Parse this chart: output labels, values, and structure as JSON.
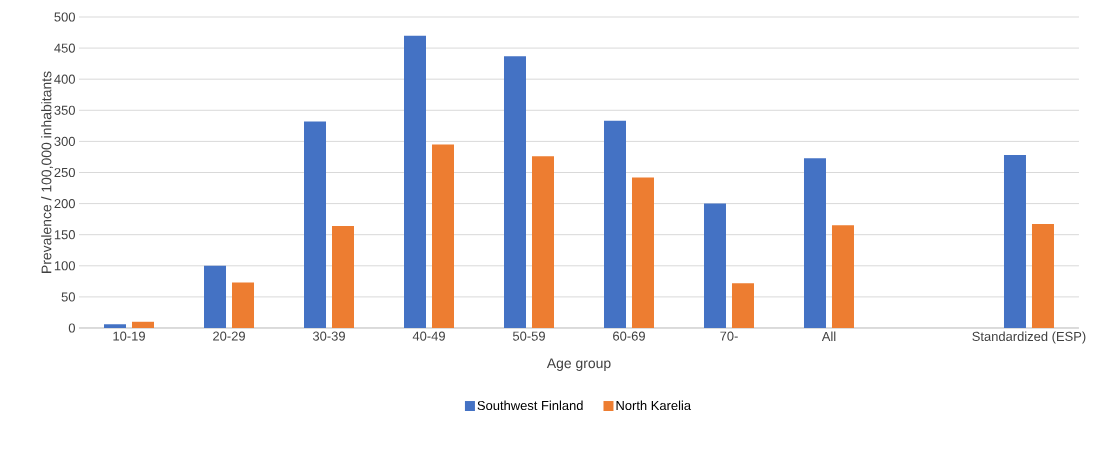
{
  "chart_data": {
    "type": "bar",
    "xlabel": "Age group",
    "ylabel": "Prevalence / 100,000 inhabitants",
    "categories": [
      "10-19",
      "20-29",
      "30-39",
      "40-49",
      "50-59",
      "60-69",
      "70-",
      "All",
      null,
      "Standardized (ESP)"
    ],
    "series": [
      {
        "name": "Southwest Finland",
        "color": "#4472c4",
        "values": [
          6,
          100,
          332,
          470,
          437,
          333,
          200,
          273,
          null,
          278
        ]
      },
      {
        "name": "North Karelia",
        "color": "#ed7d31",
        "values": [
          10,
          73,
          164,
          295,
          276,
          242,
          72,
          165,
          null,
          167
        ]
      }
    ],
    "ylim": [
      0,
      500
    ],
    "yticks": [
      0,
      50,
      100,
      150,
      200,
      250,
      300,
      350,
      400,
      450,
      500
    ],
    "grid": "y",
    "legend": "bottom"
  }
}
